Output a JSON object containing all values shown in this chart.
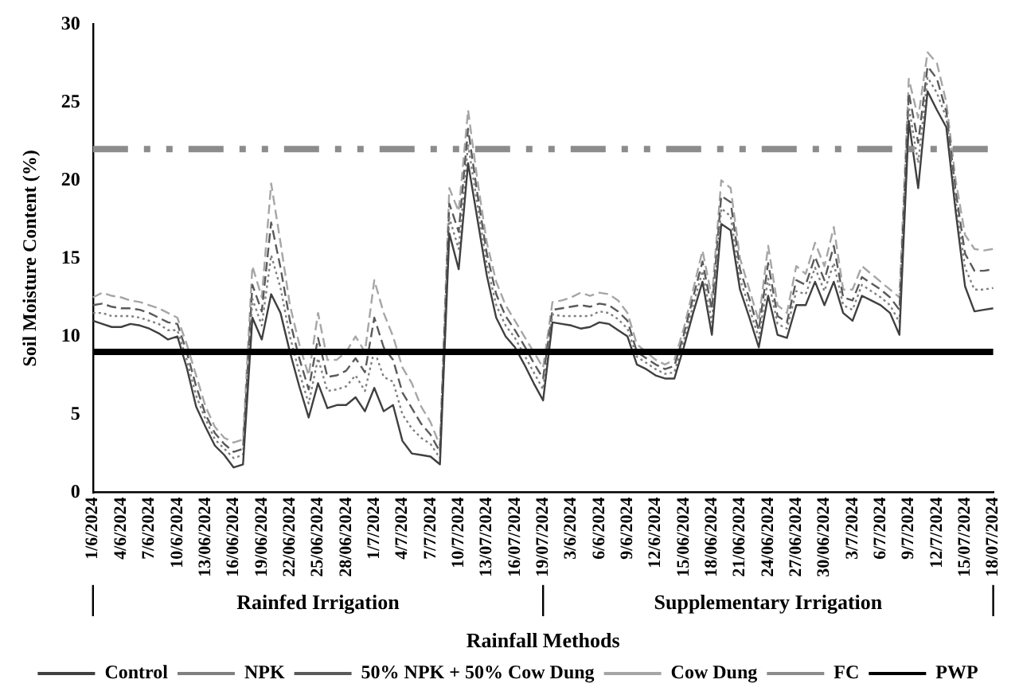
{
  "chart_data": {
    "type": "line",
    "ylabel": "Soil Moisture Content (%)",
    "xlabel": "Rainfall Methods",
    "categories": [
      "1/6/2024",
      null,
      null,
      "4/6/2024",
      null,
      null,
      "7/6/2024",
      null,
      null,
      "10/6/2024",
      null,
      null,
      "13/06/2024",
      null,
      null,
      "16/06/2024",
      null,
      null,
      "19/06/2024",
      null,
      null,
      "22/06/2024",
      null,
      null,
      "25/06/2024",
      null,
      null,
      "28/06/2024",
      null,
      null,
      "1/7/2024",
      null,
      null,
      "4/7/2024",
      null,
      null,
      "7/7/2024",
      null,
      null,
      "10/7/2024",
      null,
      null,
      "13/07/2024",
      null,
      null,
      "16/07/2024",
      null,
      null,
      "19/07/2024",
      null,
      null,
      "3/6/2024",
      null,
      null,
      "6/6/2024",
      null,
      null,
      "9/6/2024",
      null,
      null,
      "12/6/2024",
      null,
      null,
      "15/06/2024",
      null,
      null,
      "18/06/2024",
      null,
      null,
      "21/06/2024",
      null,
      null,
      "24/06/2024",
      null,
      null,
      "27/06/2024",
      null,
      null,
      "30/06/2024",
      null,
      null,
      "3/7/2024",
      null,
      null,
      "6/7/2024",
      null,
      null,
      "9/7/2024",
      null,
      null,
      "12/7/2024",
      null,
      null,
      "15/07/2024",
      null,
      null,
      "18/07/2024"
    ],
    "series": [
      {
        "name": "Control",
        "color": "#404040",
        "line_style": "solid",
        "values": [
          11.0,
          10.8,
          10.6,
          10.6,
          10.8,
          10.7,
          10.5,
          10.2,
          9.8,
          10.0,
          8.0,
          5.5,
          4.2,
          3.0,
          2.4,
          1.6,
          1.8,
          11.2,
          9.8,
          12.7,
          11.5,
          9.0,
          6.8,
          4.8,
          7.0,
          5.4,
          5.6,
          5.6,
          6.1,
          5.2,
          6.7,
          5.2,
          5.6,
          3.3,
          2.5,
          2.4,
          2.3,
          1.8,
          16.6,
          14.3,
          21.1,
          17.5,
          13.9,
          11.2,
          10.0,
          9.3,
          8.2,
          7.0,
          5.9,
          10.9,
          10.8,
          10.7,
          10.5,
          10.6,
          10.9,
          10.8,
          10.4,
          10.0,
          8.2,
          7.9,
          7.5,
          7.3,
          7.3,
          9.3,
          11.5,
          13.5,
          10.1,
          17.2,
          16.8,
          13.0,
          11.2,
          9.3,
          12.6,
          10.1,
          9.9,
          12.0,
          12.0,
          13.5,
          12.0,
          13.5,
          11.5,
          11.0,
          12.6,
          12.3,
          12.0,
          11.5,
          10.1,
          23.8,
          19.5,
          25.7,
          24.5,
          23.4,
          18.0,
          13.2,
          11.6,
          11.7,
          11.8
        ]
      },
      {
        "name": "NPK",
        "color": "#808080",
        "line_style": "dotted",
        "values": [
          11.5,
          11.5,
          11.3,
          11.3,
          11.3,
          11.2,
          11.0,
          10.8,
          10.4,
          10.4,
          8.5,
          6.2,
          4.7,
          3.4,
          2.8,
          2.2,
          2.4,
          12.4,
          10.7,
          15.2,
          13.1,
          10.0,
          7.7,
          5.7,
          8.6,
          6.5,
          6.6,
          6.8,
          7.5,
          6.5,
          9.1,
          7.4,
          7.1,
          5.0,
          4.1,
          3.5,
          3.1,
          2.2,
          17.6,
          15.6,
          22.3,
          18.4,
          14.6,
          12.0,
          10.7,
          9.9,
          8.8,
          7.7,
          6.6,
          11.4,
          11.3,
          11.3,
          11.3,
          11.3,
          11.6,
          11.5,
          11.1,
          10.5,
          8.7,
          8.3,
          7.9,
          7.6,
          7.7,
          9.7,
          12.0,
          14.2,
          10.9,
          18.2,
          17.7,
          13.7,
          11.8,
          9.9,
          13.7,
          10.8,
          10.5,
          12.9,
          12.7,
          14.4,
          12.9,
          14.7,
          12.0,
          11.7,
          13.3,
          12.9,
          12.5,
          12.0,
          10.9,
          24.7,
          21.1,
          26.6,
          25.6,
          24.0,
          18.7,
          14.4,
          13.0,
          13.0,
          13.1
        ]
      },
      {
        "name": "50% NPK + 50% Cow Dung",
        "color": "#5a5a5a",
        "line_style": "dashed",
        "values": [
          12.0,
          12.1,
          11.9,
          11.8,
          11.8,
          11.7,
          11.5,
          11.2,
          10.9,
          10.8,
          9.0,
          6.8,
          5.0,
          3.8,
          3.1,
          2.6,
          2.8,
          13.3,
          11.6,
          17.3,
          14.4,
          11.0,
          8.6,
          6.6,
          9.9,
          7.4,
          7.5,
          7.8,
          8.6,
          7.7,
          11.2,
          9.3,
          8.5,
          6.4,
          5.4,
          4.4,
          3.7,
          2.6,
          18.5,
          16.7,
          23.3,
          19.1,
          15.3,
          12.7,
          11.3,
          10.4,
          9.4,
          8.3,
          7.3,
          11.7,
          11.8,
          11.9,
          12.0,
          11.9,
          12.1,
          12.0,
          11.6,
          11.0,
          9.0,
          8.6,
          8.2,
          7.9,
          8.1,
          10.1,
          12.5,
          14.8,
          11.7,
          19.0,
          18.6,
          14.3,
          12.4,
          10.4,
          14.7,
          11.3,
          10.9,
          13.6,
          13.3,
          15.1,
          13.6,
          15.8,
          12.5,
          12.3,
          13.8,
          13.4,
          13.0,
          12.5,
          11.7,
          25.6,
          22.4,
          27.3,
          26.5,
          24.4,
          19.3,
          15.3,
          14.2,
          14.2,
          14.3
        ]
      },
      {
        "name": "Cow Dung",
        "color": "#a6a6a6",
        "line_style": "dashed",
        "values": [
          12.5,
          12.8,
          12.6,
          12.5,
          12.3,
          12.2,
          12.0,
          11.8,
          11.5,
          11.2,
          9.5,
          7.5,
          5.5,
          4.2,
          3.5,
          3.2,
          3.4,
          14.5,
          12.5,
          19.8,
          16.0,
          12.0,
          9.5,
          7.5,
          11.5,
          8.5,
          8.5,
          9.0,
          10.0,
          9.0,
          13.6,
          11.5,
          10.0,
          8.0,
          7.0,
          5.5,
          4.5,
          3.0,
          19.5,
          18.0,
          24.5,
          20.0,
          16.0,
          13.5,
          12.0,
          11.0,
          10.0,
          9.0,
          8.0,
          12.2,
          12.3,
          12.5,
          12.8,
          12.6,
          12.8,
          12.7,
          12.3,
          11.5,
          9.5,
          9.0,
          8.5,
          8.2,
          8.5,
          10.5,
          13.0,
          15.5,
          12.5,
          20.0,
          19.5,
          15.0,
          13.0,
          11.0,
          15.8,
          12.0,
          11.5,
          14.5,
          14.0,
          16.0,
          14.5,
          17.0,
          13.0,
          13.0,
          14.5,
          14.0,
          13.5,
          13.0,
          12.5,
          26.5,
          24.0,
          28.2,
          27.5,
          25.0,
          20.0,
          16.5,
          15.6,
          15.5,
          15.6
        ]
      }
    ],
    "ref_lines": [
      {
        "axis": "y",
        "value": 22,
        "label": "FC",
        "color": "#8c8c8c",
        "line_style": "dashed"
      },
      {
        "axis": "y",
        "value": 9,
        "label": "PWP",
        "color": "#000000",
        "line_style": "solid"
      }
    ],
    "annotations": [
      "Rainfed Irrigation",
      "Supplementary Irrigation"
    ],
    "ylim": [
      0,
      30
    ],
    "yticks": [
      0,
      5,
      10,
      15,
      20,
      25,
      30
    ],
    "grid": false,
    "legend": "bottom"
  }
}
